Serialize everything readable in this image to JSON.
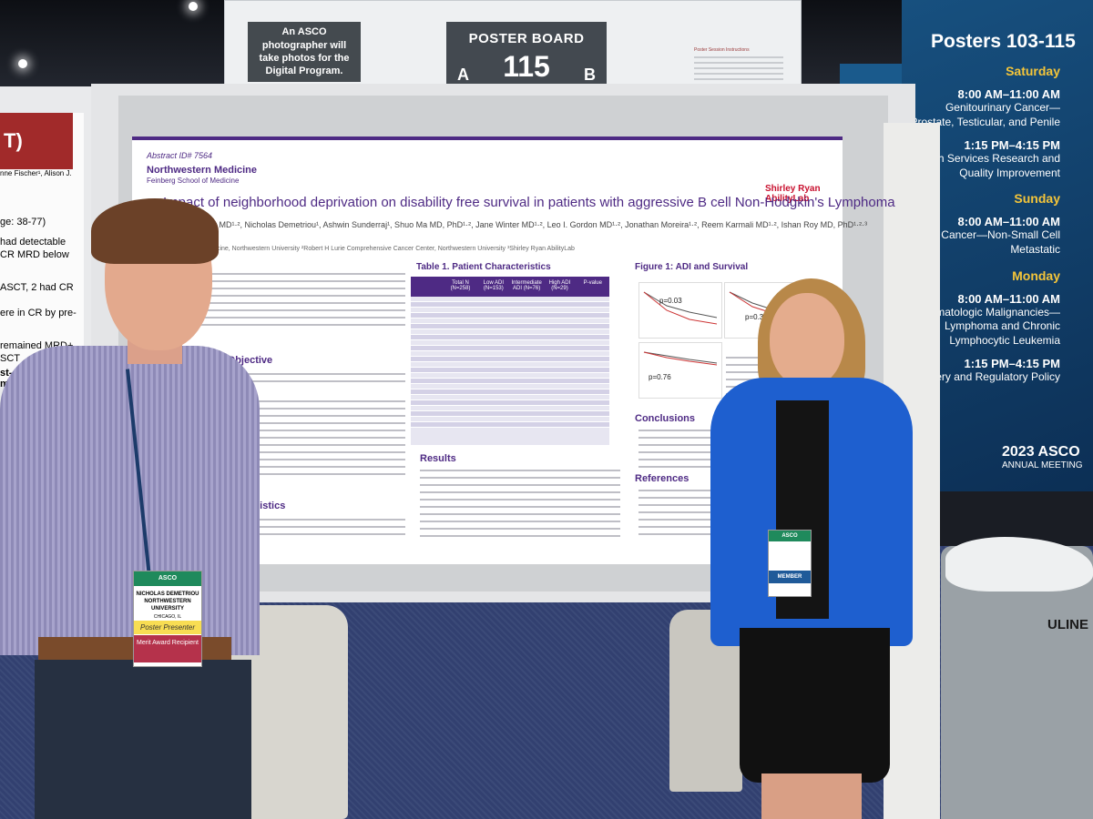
{
  "signage": {
    "photographer_note": "An ASCO photographer will take photos for the Digital Program.",
    "poster_board_label": "POSTER BOARD",
    "poster_board_number": "115",
    "side_a": "A",
    "side_b": "B",
    "session_instructions_title": "Poster Session Instructions"
  },
  "schedule": {
    "title": "Posters 103-115",
    "days": [
      {
        "day": "Saturday",
        "sessions": [
          {
            "time": "8:00 AM–11:00 AM",
            "topic": "Genitourinary Cancer—Prostate, Testicular, and Penile"
          },
          {
            "time": "1:15 PM–4:15 PM",
            "topic": "Health Services Research and Quality Improvement"
          }
        ]
      },
      {
        "day": "Sunday",
        "sessions": [
          {
            "time": "8:00 AM–11:00 AM",
            "topic": "Lung Cancer—Non-Small Cell Metastatic"
          }
        ]
      },
      {
        "day": "Monday",
        "sessions": [
          {
            "time": "8:00 AM–11:00 AM",
            "topic": "Hematologic Malignancies—Lymphoma and Chronic Lymphocytic Leukemia"
          },
          {
            "time": "1:15 PM–4:15 PM",
            "topic": "e Delivery and Regulatory Policy"
          }
        ]
      }
    ],
    "logo": "2023 ASCO",
    "logo_sub": "ANNUAL MEETING"
  },
  "left_poster": {
    "lines": [
      "T)",
      "nne Fischer¹, Alison J.",
      "ge: 38-77)",
      "had detectable",
      "CR MRD below",
      "ASCT, 2 had CR",
      "ere in CR by pre-",
      "remained MRD+",
      "SCT",
      "st-ASCT, none",
      "months"
    ]
  },
  "poster": {
    "abstract_id": "Abstract ID# 7564",
    "institution": "Northwestern Medicine",
    "institution_sub": "Feinberg School of Medicine",
    "partner_logo": "Shirley Ryan AbilityLab",
    "title": "Impact of neighborhood deprivation on disability free survival in patients with aggressive B cell Non-Hodgkin's Lymphoma",
    "authors": "urkart MD¹·², Nicholas Demetriou¹, Ashwin Sunderraj¹, Shuo Ma MD, PhD¹·², Jane Winter MD¹·², Leo I. Gordon MD¹·², Jonathan Moreira¹·², Reem Karmali MD¹·², Ishan Roy MD, PhD¹·²·³",
    "affiliations": "of Medicine, Northwestern University ²Robert H Lurie Comprehensive Cancer Center, Northwestern University ³Shirley Ryan AbilityLab",
    "sections": {
      "objective": "esearch Objective",
      "characteristics": "cteristics",
      "table_title": "Table 1. Patient Characteristics",
      "results": "Results",
      "figure_title": "Figure 1: ADI and Survival",
      "conclusions": "Conclusions",
      "references": "References"
    },
    "table_headers": [
      "Total N (N=258)",
      "Low ADI (N=153)",
      "Intermediate ADI (N=76)",
      "High ADI (N=29)",
      "P-value"
    ],
    "figure_pvalues": [
      "p=0.03",
      "p=0.33",
      "p=0.76"
    ]
  },
  "badges": {
    "man": {
      "org": "ASCO",
      "name": "NICHOLAS DEMETRIOU NORTHWESTERN UNIVERSITY",
      "location": "CHICAGO, IL",
      "role": "Poster Presenter",
      "award": "Merit Award Recipient"
    },
    "woman": {
      "org": "ASCO",
      "role": "MEMBER"
    }
  },
  "bin_label": "ULINE"
}
